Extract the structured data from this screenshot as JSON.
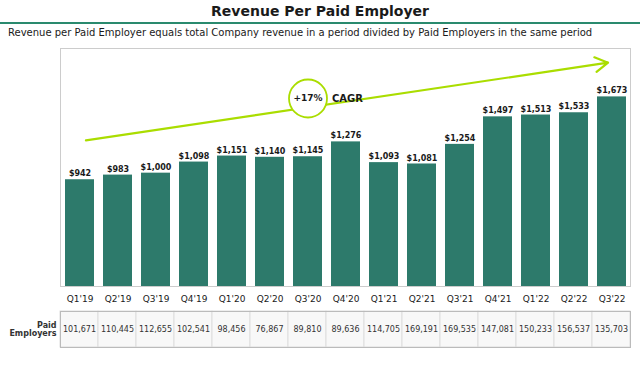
{
  "chart_data": {
    "type": "bar",
    "title": "Revenue Per Paid Employer",
    "subtitle": "Revenue per Paid Employer equals total Company revenue in a period divided by Paid Employers in the same period",
    "categories": [
      "Q1'19",
      "Q2'19",
      "Q3'19",
      "Q4'19",
      "Q1'20",
      "Q2'20",
      "Q3'20",
      "Q4'20",
      "Q1'21",
      "Q2'21",
      "Q3'21",
      "Q4'21",
      "Q1'22",
      "Q2'22",
      "Q3'22"
    ],
    "values": [
      942,
      983,
      1000,
      1098,
      1151,
      1140,
      1145,
      1276,
      1093,
      1081,
      1254,
      1497,
      1513,
      1533,
      1673
    ],
    "value_labels": [
      "$942",
      "$983",
      "$1,000",
      "$1,098",
      "$1,151",
      "$1,140",
      "$1,145",
      "$1,276",
      "$1,093",
      "$1,081",
      "$1,254",
      "$1,497",
      "$1,513",
      "$1,533",
      "$1,673"
    ],
    "color": "#2d7a6b",
    "data_labels": true,
    "ylim": [
      0,
      2100
    ],
    "yticks": [],
    "tick_labels": "x",
    "grid": false,
    "annotations": [
      "+17%",
      "CAGR"
    ],
    "table": {
      "label": "Paid Employers",
      "cells": [
        "101,671",
        "110,445",
        "112,655",
        "102,541",
        "98,456",
        "76,867",
        "89,810",
        "89,636",
        "114,705",
        "169,191",
        "169,535",
        "147,081",
        "150,233",
        "156,537",
        "135,703"
      ]
    }
  }
}
